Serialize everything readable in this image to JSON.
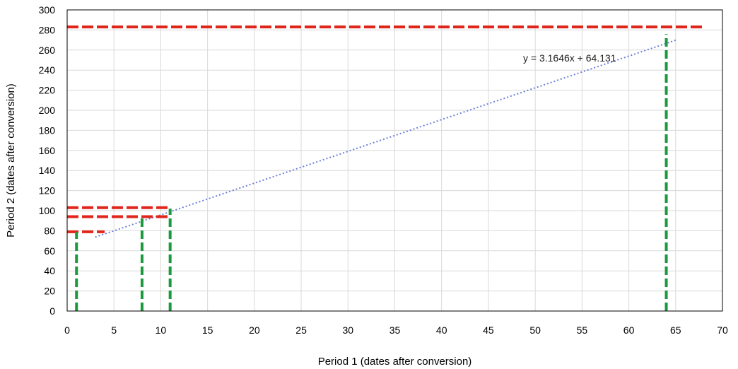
{
  "chart_data": {
    "type": "scatter",
    "title": "",
    "xlabel": "Period 1 (dates after conversion)",
    "ylabel": "Period 2 (dates after conversion)",
    "xlim": [
      0,
      70
    ],
    "ylim": [
      0,
      300
    ],
    "x_ticks": [
      0,
      5,
      10,
      15,
      20,
      25,
      30,
      35,
      40,
      45,
      50,
      55,
      60,
      65,
      70
    ],
    "y_ticks": [
      0,
      20,
      40,
      60,
      80,
      100,
      120,
      140,
      160,
      180,
      200,
      220,
      240,
      260,
      280,
      300
    ],
    "grid": true,
    "trendline": {
      "slope": 3.1646,
      "intercept": 64.131,
      "x_range": [
        3,
        65
      ],
      "equation": "y = 3.1646x + 64.131",
      "color": "#6b7fd8",
      "style": "dotted"
    },
    "vertical_guides": {
      "color": "#1a9a3c",
      "style": "dashed",
      "lines": [
        {
          "x": 1,
          "y_top": 79
        },
        {
          "x": 8,
          "y_top": 94
        },
        {
          "x": 11,
          "y_top": 102
        },
        {
          "x": 64,
          "y_top": 276
        }
      ]
    },
    "horizontal_guides": {
      "color": "#e0251b",
      "style": "dashed",
      "lines": [
        {
          "y": 79,
          "x_start": 0,
          "x_end": 4
        },
        {
          "y": 94,
          "x_start": 0,
          "x_end": 11
        },
        {
          "y": 103,
          "x_start": 0,
          "x_end": 11
        },
        {
          "y": 283,
          "x_start": 0,
          "x_end": 68
        }
      ]
    }
  }
}
